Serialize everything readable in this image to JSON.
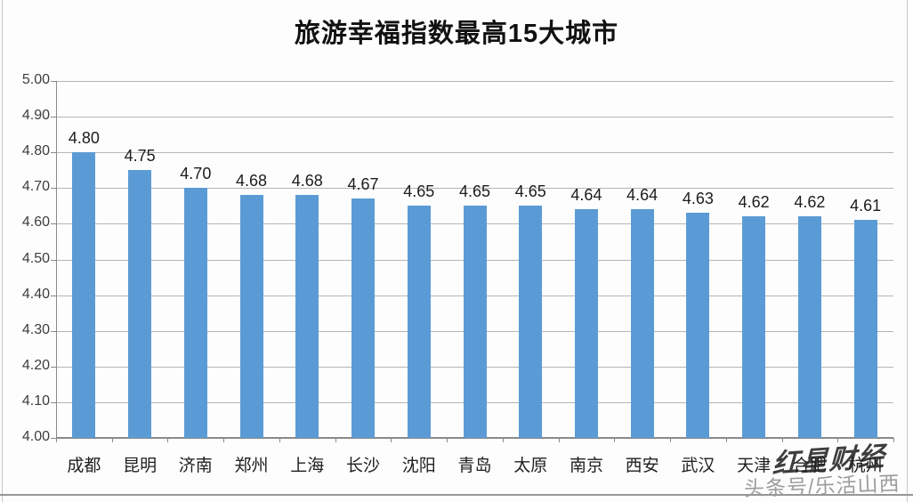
{
  "title": "旅游幸福指数最高15大城市",
  "chart_data": {
    "type": "bar",
    "title": "旅游幸福指数最高15大城市",
    "categories": [
      "成都",
      "昆明",
      "济南",
      "郑州",
      "上海",
      "长沙",
      "沈阳",
      "青岛",
      "太原",
      "南京",
      "西安",
      "武汉",
      "天津",
      "合肥",
      "杭州"
    ],
    "values": [
      4.8,
      4.75,
      4.7,
      4.68,
      4.68,
      4.67,
      4.65,
      4.65,
      4.65,
      4.64,
      4.64,
      4.63,
      4.62,
      4.62,
      4.61
    ],
    "xlabel": "",
    "ylabel": "",
    "ylim": [
      4.0,
      5.0
    ],
    "ytick_step": 0.1,
    "value_decimals": 2,
    "grid": true,
    "legend": false,
    "bar_color": "#5B9BD5",
    "gridline_color": "#b5b5b5",
    "axis_color": "#8a8a8a"
  },
  "watermarks": {
    "dark": "红星财经",
    "light": "头条号/乐活山西"
  }
}
